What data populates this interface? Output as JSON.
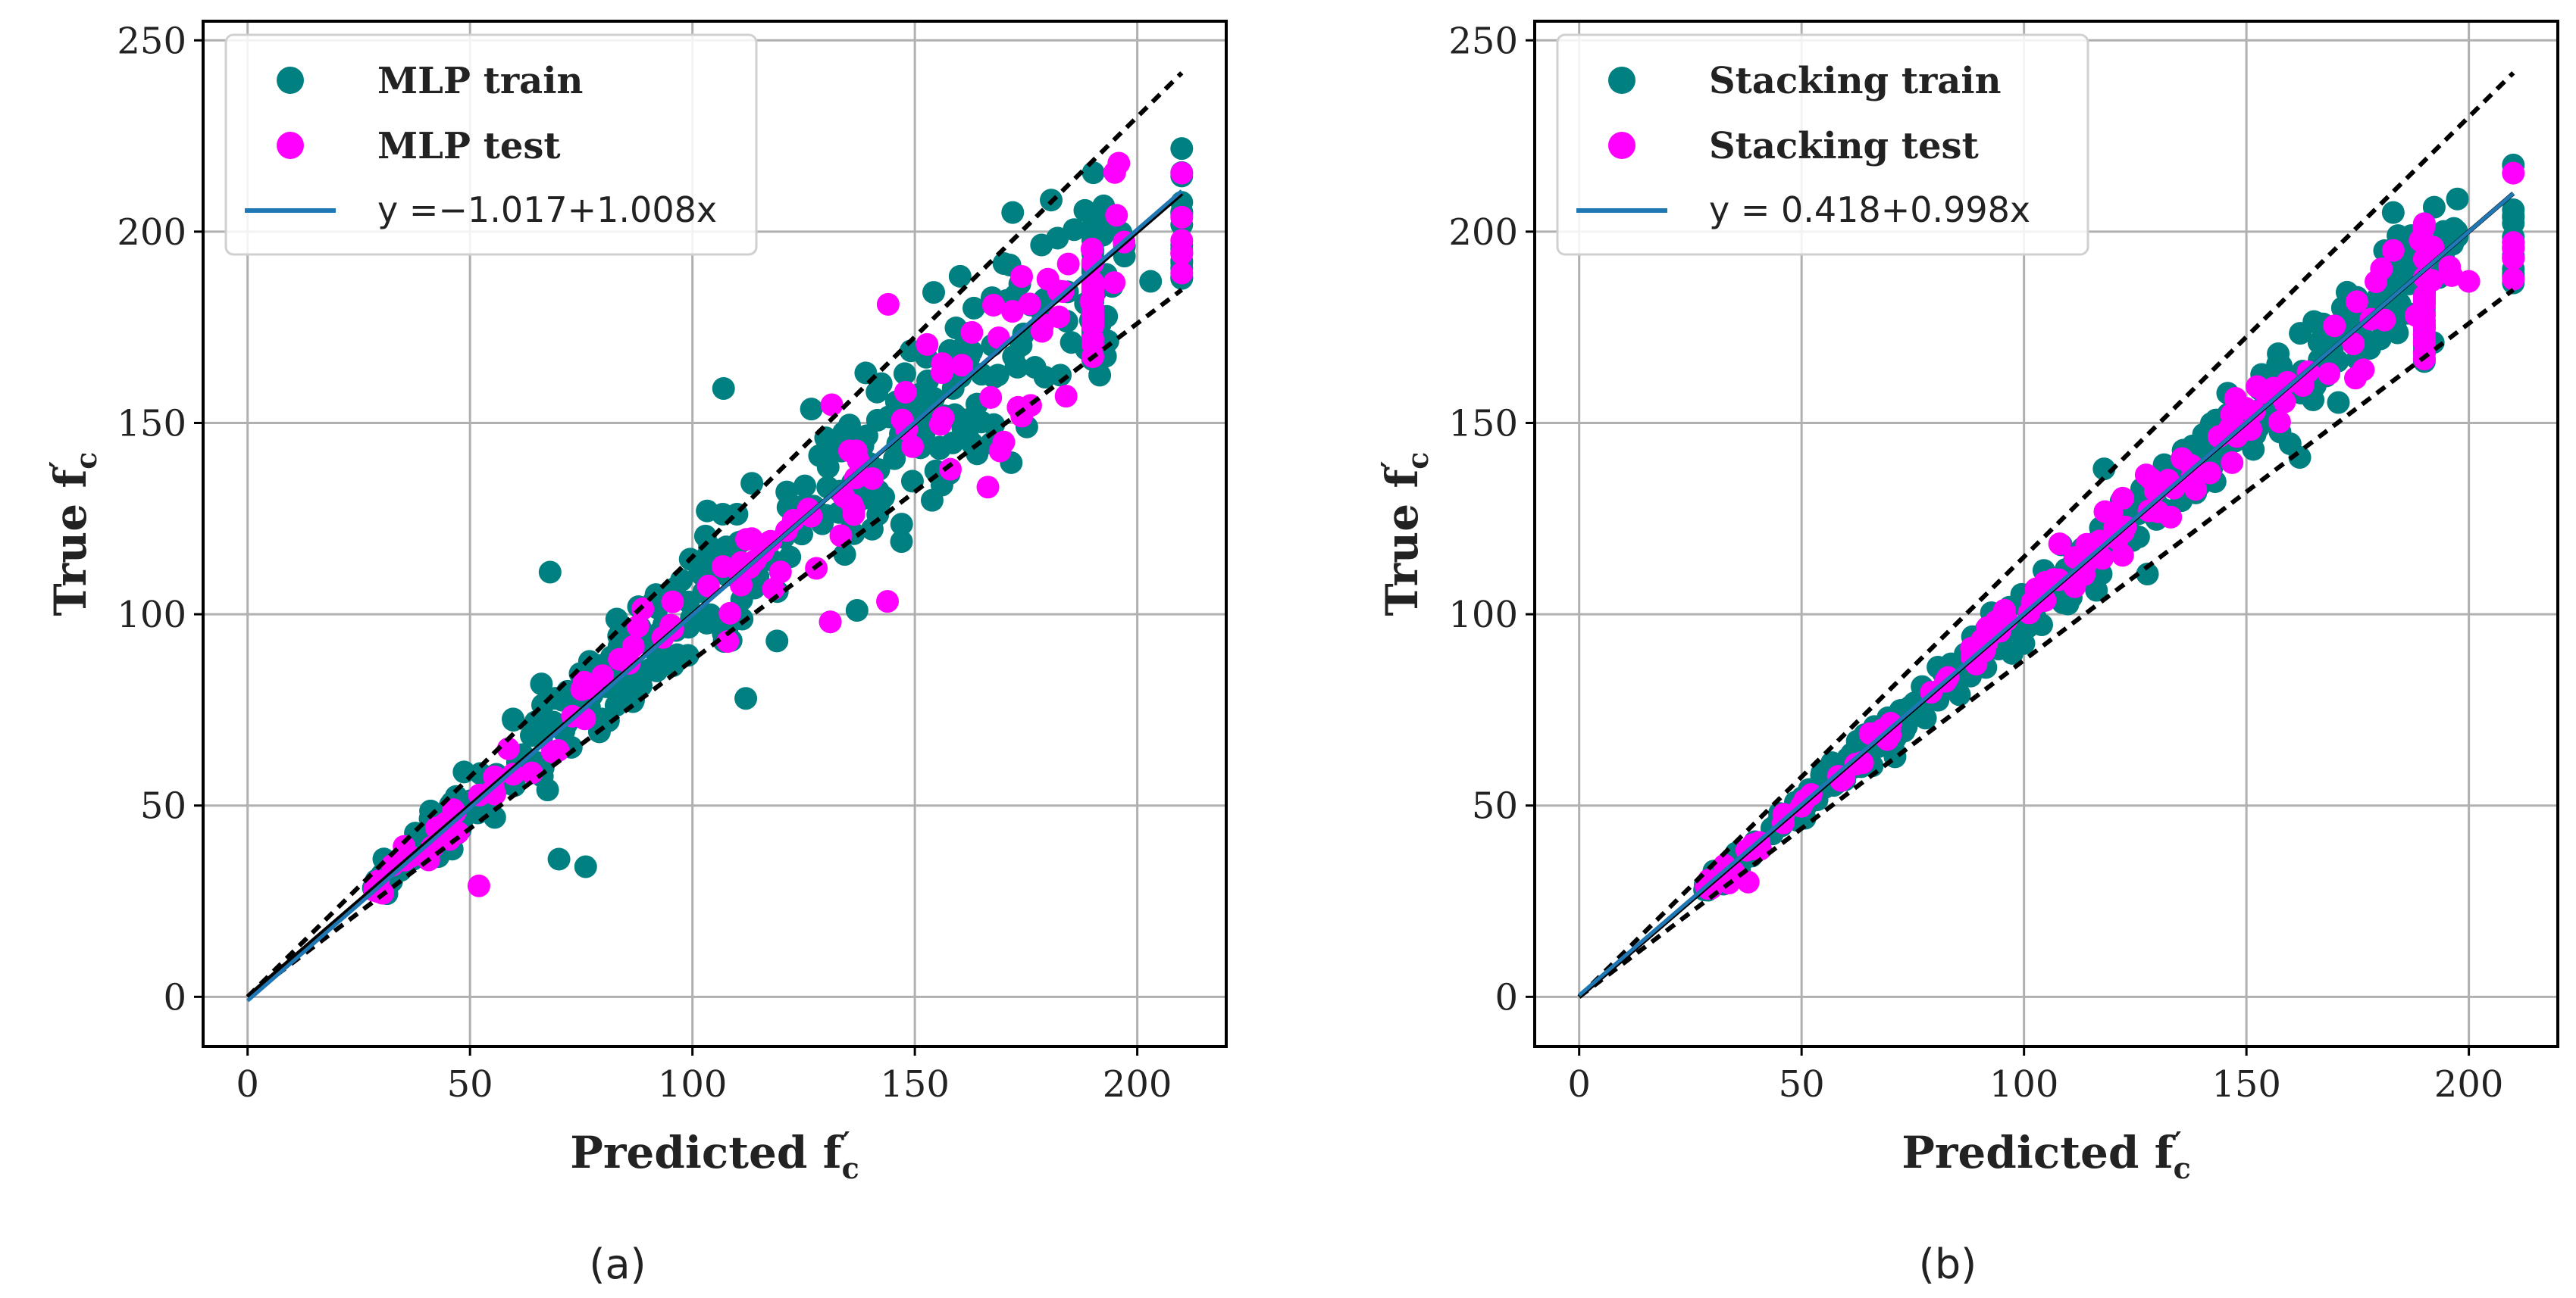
{
  "chart_data": [
    {
      "type": "scatter",
      "panel_label": "(a)",
      "xlabel": "Predicted f",
      "xlabel_sub": "c",
      "ylabel": "True f",
      "ylabel_sub": "c",
      "xlim": [
        -10,
        220
      ],
      "ylim": [
        -13,
        255
      ],
      "xticks": [
        0,
        50,
        100,
        150,
        200
      ],
      "yticks": [
        0,
        50,
        100,
        150,
        200,
        250
      ],
      "grid": true,
      "legend_position": "top-left",
      "fit": {
        "label": "y =−1.017+1.008x",
        "intercept": -1.017,
        "slope": 1.008,
        "x_range": [
          0,
          210
        ]
      },
      "reference_line": {
        "slope": 1,
        "intercept": 0,
        "x_range": [
          0,
          210
        ]
      },
      "bounds": [
        {
          "slope": 1.15,
          "x_range": [
            0,
            210
          ]
        },
        {
          "slope": 0.88,
          "x_range": [
            0,
            210
          ]
        }
      ],
      "series": [
        {
          "name": "MLP train",
          "color": "#008080",
          "scatter": 0.09,
          "outliers": [
            [
              68,
              111
            ],
            [
              107,
              159
            ],
            [
              112,
              78
            ],
            [
              70,
              36
            ],
            [
              76,
              34
            ],
            [
              131,
              98
            ],
            [
              203,
              187
            ],
            [
              172,
              205
            ],
            [
              137,
              101
            ],
            [
              147,
              119
            ]
          ]
        },
        {
          "name": "MLP test",
          "color": "#ff00ff",
          "scatter": 0.07,
          "outliers": [
            [
              52,
              29
            ],
            [
              144,
              181
            ],
            [
              184,
              157
            ],
            [
              170,
              145
            ],
            [
              131,
              98
            ]
          ]
        }
      ]
    },
    {
      "type": "scatter",
      "panel_label": "(b)",
      "xlabel": "Predicted f",
      "xlabel_sub": "c",
      "ylabel": "True f",
      "ylabel_sub": "c",
      "xlim": [
        -10,
        220
      ],
      "ylim": [
        -13,
        255
      ],
      "xticks": [
        0,
        50,
        100,
        150,
        200
      ],
      "yticks": [
        0,
        50,
        100,
        150,
        200,
        250
      ],
      "grid": true,
      "legend_position": "top-left",
      "fit": {
        "label": "y = 0.418+0.998x",
        "intercept": 0.418,
        "slope": 0.998,
        "x_range": [
          0,
          210
        ]
      },
      "reference_line": {
        "slope": 1,
        "intercept": 0,
        "x_range": [
          0,
          210
        ]
      },
      "bounds": [
        {
          "slope": 1.15,
          "x_range": [
            0,
            210
          ]
        },
        {
          "slope": 0.88,
          "x_range": [
            0,
            210
          ]
        }
      ],
      "series": [
        {
          "name": "Stacking train",
          "color": "#008080",
          "scatter": 0.04,
          "outliers": [
            [
              192,
              171
            ],
            [
              183,
              205
            ],
            [
              162,
              141
            ],
            [
              118,
              138
            ]
          ]
        },
        {
          "name": "Stacking test",
          "color": "#ff00ff",
          "scatter": 0.035,
          "outliers": [
            [
              200,
              187
            ],
            [
              38,
              30
            ]
          ]
        }
      ]
    }
  ]
}
